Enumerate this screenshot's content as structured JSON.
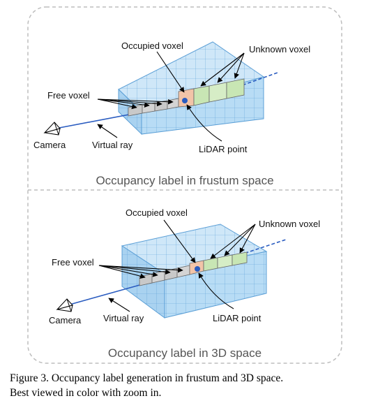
{
  "panels": [
    {
      "caption": "Occupancy label in frustum space",
      "labels": {
        "occupied": "Occupied voxel",
        "unknown": "Unknown voxel",
        "free": "Free voxel",
        "camera": "Camera",
        "ray": "Virtual ray",
        "lidar": "LiDAR point"
      }
    },
    {
      "caption": "Occupancy label in 3D space",
      "labels": {
        "occupied": "Occupied voxel",
        "unknown": "Unknown voxel",
        "free": "Free voxel",
        "camera": "Camera",
        "ray": "Virtual ray",
        "lidar": "LiDAR point"
      }
    }
  ],
  "figure_caption": {
    "line1": "Figure 3.   Occupancy label generation in frustum and 3D space.",
    "line2": "Best viewed in color with zoom in."
  },
  "colors": {
    "grid_face": "#b8dcf5",
    "grid_line": "#5b9fd6",
    "free_voxel": "#c9c9c9",
    "occupied_voxel": "#f2c4a8",
    "unknown_voxel": "#c8e6b4",
    "ray": "#2a5cc0",
    "frame": "#bdbdbd"
  }
}
